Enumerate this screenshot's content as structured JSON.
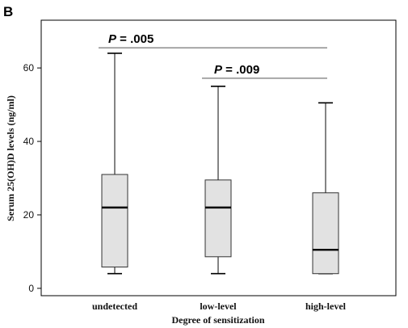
{
  "panel_label": "B",
  "chart_data": {
    "type": "box",
    "xlabel": "Degree of sensitization",
    "ylabel": "Serum 25(OH)D levels (ng/ml)",
    "ylim": [
      -2,
      73
    ],
    "yticks": [
      0,
      20,
      40,
      60
    ],
    "grid": false,
    "categories": [
      "undetected",
      "low-level",
      "high-level"
    ],
    "boxes": [
      {
        "category": "undetected",
        "min": 4,
        "q1": 5.8,
        "median": 22,
        "q3": 31,
        "max": 64
      },
      {
        "category": "low-level",
        "min": 4,
        "q1": 8.6,
        "median": 22,
        "q3": 29.5,
        "max": 55
      },
      {
        "category": "high-level",
        "min": 4,
        "q1": 4,
        "median": 10.5,
        "q3": 26,
        "max": 50.5
      }
    ],
    "annotations": [
      {
        "p_symbol": "P",
        "p_value": "= .005",
        "from": "undetected",
        "to": "high-level",
        "y": 65.5
      },
      {
        "p_symbol": "P",
        "p_value": "= .009",
        "from": "low-level",
        "to": "high-level",
        "y": 57.2
      }
    ],
    "colors": {
      "box_fill": "#e2e2e2",
      "box_stroke": "#333333",
      "median": "#000000",
      "bracket": "#555555"
    }
  }
}
